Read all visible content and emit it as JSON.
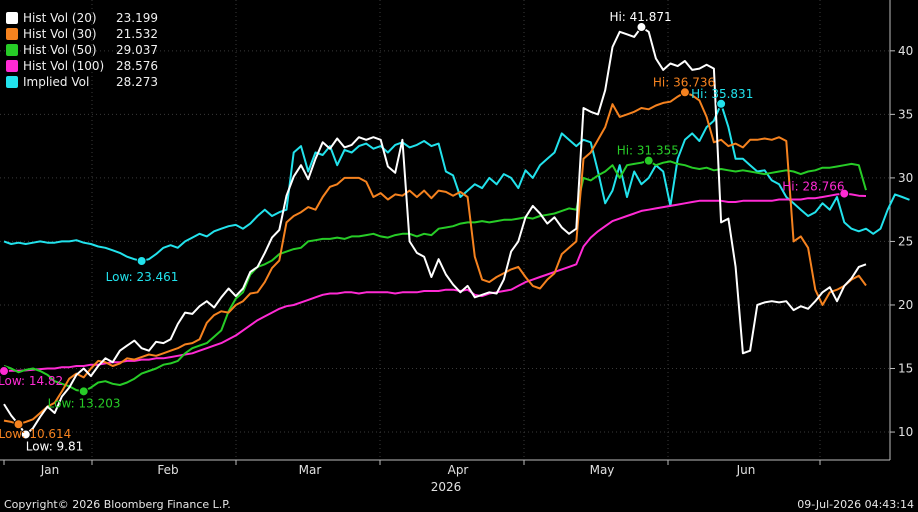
{
  "chart_data": {
    "type": "line",
    "x_axis": {
      "month_labels": [
        "Jan",
        "Feb",
        "Mar",
        "Apr",
        "May",
        "Jun"
      ],
      "year_label": "2026"
    },
    "y_axis": {
      "ylim": [
        7.8,
        44
      ],
      "ticks": [
        10,
        15,
        20,
        25,
        30,
        35,
        40
      ]
    },
    "grid": true,
    "legend_position": "top-left",
    "series": [
      {
        "name": "Hist Vol (20)",
        "last": "23.199",
        "color": "#ffffff",
        "values": [
          12.2,
          11.3,
          10.6,
          9.81,
          10.3,
          11.2,
          12.0,
          11.5,
          12.8,
          13.5,
          14.5,
          15.0,
          14.4,
          15.2,
          15.8,
          15.5,
          16.4,
          16.8,
          17.2,
          16.6,
          16.4,
          17.1,
          17.0,
          17.3,
          18.5,
          19.4,
          19.3,
          19.9,
          20.3,
          19.8,
          20.6,
          21.3,
          20.7,
          21.3,
          22.6,
          23.0,
          24.1,
          25.3,
          25.9,
          28.6,
          30.1,
          31.0,
          29.9,
          31.5,
          32.8,
          32.3,
          33.1,
          32.4,
          32.6,
          33.2,
          33.0,
          33.2,
          33.0,
          30.9,
          30.4,
          33.0,
          25.0,
          24.1,
          23.8,
          22.2,
          23.6,
          22.4,
          21.6,
          21.0,
          21.5,
          20.6,
          20.8,
          21.0,
          20.9,
          22.0,
          24.2,
          25.0,
          26.9,
          27.8,
          27.2,
          26.4,
          26.9,
          26.1,
          25.6,
          26.0,
          35.5,
          35.2,
          35.0,
          36.9,
          40.3,
          41.5,
          41.3,
          41.1,
          41.871,
          41.5,
          39.4,
          38.5,
          39.0,
          38.8,
          39.2,
          38.5,
          38.6,
          38.9,
          38.6,
          26.5,
          26.8,
          23.0,
          16.2,
          16.4,
          20.0,
          20.2,
          20.3,
          20.2,
          20.3,
          19.6,
          19.9,
          19.7,
          20.3,
          21.0,
          21.4,
          20.3,
          21.5,
          22.1,
          23.0,
          23.199
        ]
      },
      {
        "name": "Hist Vol (30)",
        "last": "21.532",
        "color": "#f5821f",
        "values": [
          10.9,
          10.8,
          10.614,
          10.8,
          11.0,
          11.5,
          12.0,
          12.3,
          13.2,
          14.2,
          14.6,
          14.3,
          15.0,
          15.6,
          15.5,
          15.2,
          15.4,
          15.8,
          15.7,
          15.9,
          16.1,
          16.0,
          16.2,
          16.4,
          16.6,
          16.9,
          17.0,
          17.3,
          18.6,
          19.2,
          19.5,
          19.4,
          20.0,
          20.3,
          20.9,
          21.0,
          21.8,
          22.9,
          23.5,
          26.5,
          27.0,
          27.3,
          27.7,
          27.5,
          28.5,
          29.3,
          29.5,
          30.0,
          30.0,
          30.0,
          29.7,
          28.5,
          28.8,
          28.3,
          28.7,
          28.6,
          29.0,
          28.5,
          29.0,
          28.4,
          29.0,
          28.9,
          28.6,
          28.9,
          28.5,
          23.8,
          22.0,
          21.8,
          22.2,
          22.5,
          22.8,
          23.0,
          22.2,
          21.5,
          21.3,
          22.0,
          22.5,
          24.0,
          24.5,
          25.0,
          31.5,
          32.0,
          33.0,
          34.0,
          35.8,
          34.8,
          35.0,
          35.2,
          35.5,
          35.4,
          35.7,
          35.9,
          36.0,
          36.4,
          36.736,
          36.5,
          36.1,
          34.8,
          32.8,
          33.0,
          32.5,
          32.7,
          32.4,
          33.0,
          33.0,
          33.1,
          33.0,
          33.2,
          32.9,
          25.0,
          25.4,
          24.5,
          21.2,
          20.0,
          21.0,
          21.2,
          21.5,
          22.0,
          22.3,
          21.532
        ]
      },
      {
        "name": "Hist Vol (50)",
        "last": "29.037",
        "color": "#27cc27",
        "values": [
          15.2,
          15.0,
          14.7,
          14.9,
          15.0,
          14.8,
          14.5,
          14.0,
          13.8,
          13.6,
          13.3,
          13.203,
          13.5,
          13.9,
          14.0,
          13.8,
          13.7,
          13.9,
          14.2,
          14.6,
          14.8,
          15.0,
          15.3,
          15.4,
          15.6,
          16.2,
          16.6,
          16.8,
          17.0,
          17.5,
          18.0,
          19.5,
          20.5,
          21.0,
          22.4,
          23.0,
          23.2,
          23.5,
          24.0,
          24.2,
          24.4,
          24.5,
          25.0,
          25.1,
          25.2,
          25.2,
          25.3,
          25.2,
          25.4,
          25.4,
          25.5,
          25.6,
          25.4,
          25.3,
          25.5,
          25.6,
          25.6,
          25.4,
          25.6,
          25.5,
          26.0,
          26.1,
          26.2,
          26.4,
          26.5,
          26.5,
          26.6,
          26.5,
          26.6,
          26.7,
          26.7,
          26.8,
          26.9,
          26.8,
          27.0,
          27.1,
          27.2,
          27.4,
          27.6,
          27.5,
          30.0,
          29.8,
          30.2,
          30.5,
          31.0,
          30.0,
          31.0,
          31.1,
          31.2,
          31.355,
          31.0,
          31.2,
          31.3,
          31.1,
          31.0,
          30.8,
          30.7,
          30.8,
          30.6,
          30.7,
          30.6,
          30.5,
          30.6,
          30.5,
          30.4,
          30.3,
          30.4,
          30.5,
          30.6,
          30.5,
          30.3,
          30.5,
          30.6,
          30.8,
          30.8,
          30.9,
          31.0,
          31.1,
          31.0,
          29.037
        ]
      },
      {
        "name": "Hist Vol (100)",
        "last": "28.576",
        "color": "#ff2ad4",
        "values": [
          14.8,
          14.82,
          14.83,
          14.85,
          14.9,
          14.95,
          15.0,
          15.0,
          15.1,
          15.1,
          15.2,
          15.2,
          15.3,
          15.3,
          15.4,
          15.5,
          15.5,
          15.6,
          15.6,
          15.7,
          15.7,
          15.8,
          15.8,
          15.9,
          16.0,
          16.1,
          16.2,
          16.4,
          16.6,
          16.8,
          17.0,
          17.3,
          17.6,
          18.0,
          18.4,
          18.8,
          19.1,
          19.4,
          19.7,
          19.9,
          20.0,
          20.2,
          20.4,
          20.6,
          20.8,
          20.9,
          20.9,
          21.0,
          21.0,
          20.9,
          21.0,
          21.0,
          21.0,
          21.0,
          20.9,
          21.0,
          21.0,
          21.0,
          21.1,
          21.1,
          21.1,
          21.2,
          21.2,
          21.1,
          21.2,
          20.8,
          20.7,
          20.9,
          21.0,
          21.1,
          21.2,
          21.5,
          21.8,
          22.0,
          22.2,
          22.4,
          22.6,
          22.8,
          23.0,
          23.2,
          24.6,
          25.3,
          25.8,
          26.2,
          26.6,
          26.8,
          27.0,
          27.2,
          27.4,
          27.5,
          27.6,
          27.7,
          27.8,
          27.9,
          28.0,
          28.1,
          28.2,
          28.2,
          28.2,
          28.2,
          28.1,
          28.1,
          28.2,
          28.2,
          28.2,
          28.2,
          28.2,
          28.3,
          28.3,
          28.3,
          28.3,
          28.4,
          28.4,
          28.5,
          28.6,
          28.7,
          28.766,
          28.7,
          28.6,
          28.576
        ]
      },
      {
        "name": "Implied Vol",
        "last": "28.273",
        "color": "#22e2ec",
        "values": [
          25.0,
          24.8,
          24.9,
          24.8,
          24.9,
          25.0,
          24.9,
          24.9,
          25.0,
          25.0,
          25.1,
          24.9,
          24.8,
          24.6,
          24.5,
          24.3,
          24.1,
          23.8,
          23.6,
          23.461,
          23.6,
          24.0,
          24.5,
          24.7,
          24.5,
          25.0,
          25.3,
          25.6,
          25.4,
          25.8,
          26.0,
          26.2,
          26.3,
          26.0,
          26.4,
          27.0,
          27.5,
          27.0,
          27.3,
          27.5,
          32.0,
          32.5,
          30.5,
          32.0,
          31.8,
          32.5,
          31.0,
          32.2,
          32.0,
          32.5,
          32.7,
          32.3,
          32.5,
          32.0,
          32.6,
          32.8,
          32.4,
          32.6,
          32.9,
          32.5,
          32.7,
          30.5,
          30.2,
          28.5,
          29.0,
          29.5,
          29.2,
          30.0,
          29.5,
          30.3,
          30.0,
          29.2,
          30.6,
          30.0,
          31.0,
          31.5,
          32.0,
          33.5,
          33.0,
          32.5,
          33.0,
          32.8,
          30.5,
          28.0,
          29.0,
          31.0,
          28.5,
          30.5,
          29.5,
          30.0,
          31.0,
          30.5,
          27.8,
          31.5,
          33.0,
          33.5,
          32.9,
          34.0,
          34.5,
          35.831,
          34.0,
          31.5,
          31.5,
          31.0,
          30.5,
          30.6,
          29.8,
          29.5,
          28.5,
          28.0,
          27.5,
          27.0,
          27.3,
          28.0,
          27.5,
          28.5,
          26.5,
          26.0,
          25.8,
          26.0,
          25.6,
          26.0,
          27.5,
          28.7,
          28.5,
          28.273
        ]
      }
    ],
    "annotations": [
      {
        "text": "Hi: 41.871",
        "series": 0,
        "kind": "high",
        "color": "#ffffff"
      },
      {
        "text": "Low: 9.81",
        "series": 0,
        "kind": "low",
        "color": "#ffffff"
      },
      {
        "text": "Hi: 36.736",
        "series": 1,
        "kind": "high",
        "color": "#f5821f"
      },
      {
        "text": "Low: 10.614",
        "series": 1,
        "kind": "low",
        "color": "#f5821f"
      },
      {
        "text": "Hi: 31.355",
        "series": 2,
        "kind": "high",
        "color": "#27cc27"
      },
      {
        "text": "Low: 13.203",
        "series": 2,
        "kind": "low",
        "color": "#27cc27"
      },
      {
        "text": "Hi: 28.766",
        "series": 3,
        "kind": "high",
        "color": "#ff2ad4"
      },
      {
        "text": "Low: 14.82",
        "series": 3,
        "kind": "low",
        "color": "#ff2ad4"
      },
      {
        "text": "Hi: 35.831",
        "series": 4,
        "kind": "high",
        "color": "#22e2ec"
      },
      {
        "text": "Low: 23.461",
        "series": 4,
        "kind": "low",
        "color": "#22e2ec"
      }
    ]
  },
  "footer": {
    "copyright": "Copyright© 2026 Bloomberg Finance L.P.",
    "timestamp": "09-Jul-2026 04:43:14"
  }
}
